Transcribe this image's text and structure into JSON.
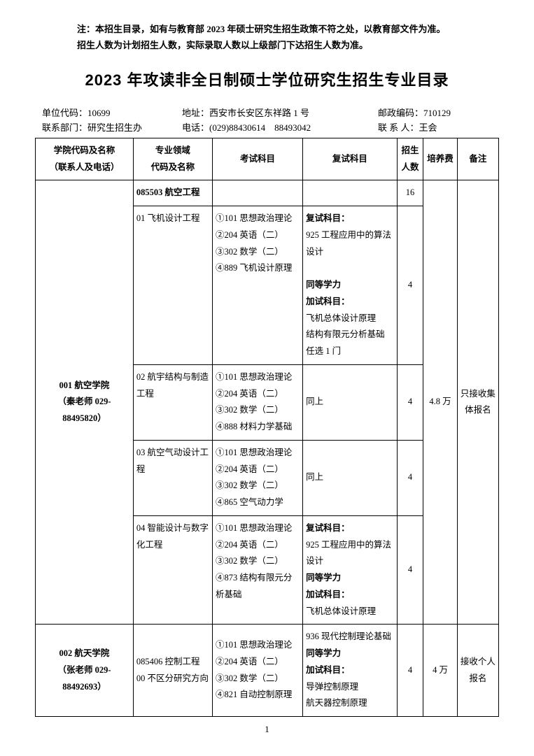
{
  "notice_line1": "注：本招生目录，如有与教育部 2023 年硕士研究生招生政策不符之处，以教育部文件为准。",
  "notice_line2": "招生人数为计划招生人数，实际录取人数以上级部门下达招生人数为准。",
  "title": "2023 年攻读非全日制硕士学位研究生招生专业目录",
  "info": {
    "unit_code_label": "单位代码：",
    "unit_code": "10699",
    "address_label": "地址：",
    "address": "西安市长安区东祥路 1 号",
    "postcode_label": "邮政编码：",
    "postcode": "710129",
    "dept_label": "联系部门：",
    "dept": "研究生招生办",
    "phone_label": "电话：",
    "phone": "(029)88430614　88493042",
    "contact_label": "联 系 人：",
    "contact": "王会"
  },
  "headers": {
    "school": "学院代码及名称\n（联系人及电话）",
    "major": "专业领域\n代码及名称",
    "exam": "考试科目",
    "retest": "复试科目",
    "num": "招生\n人数",
    "fee": "培养费",
    "note": "备注"
  },
  "school1": {
    "name": "001 航空学院",
    "contact": "（秦老师 029-88495820）",
    "fee": "4.8 万",
    "note": "只接收集体报名",
    "major_header": "085503 航空工程",
    "major_header_num": "16",
    "r1": {
      "major": "01 飞机设计工程",
      "exam": "①101 思想政治理论\n②204 英语（二）\n③302 数学（二）\n④889 飞机设计原理",
      "retest_t1": "复试科目：",
      "retest_v1": "925 工程应用中的算法设计",
      "retest_t2": "同等学力",
      "retest_t3": "加试科目：",
      "retest_v2": "飞机总体设计原理\n结构有限元分析基础\n任选 1 门",
      "num": "4"
    },
    "r2": {
      "major": "02 航宇结构与制造工程",
      "exam": "①101 思想政治理论\n②204 英语（二）\n③302 数学（二）\n④888 材料力学基础",
      "retest": "同上",
      "num": "4"
    },
    "r3": {
      "major": "03 航空气动设计工程",
      "exam": "①101 思想政治理论\n②204 英语（二）\n③302 数学（二）\n④865 空气动力学",
      "retest": "同上",
      "num": "4"
    },
    "r4": {
      "major": "04 智能设计与数字化工程",
      "exam": "①101 思想政治理论\n②204 英语（二）\n③302 数学（二）\n④873 结构有限元分析基础",
      "retest_t1": "复试科目：",
      "retest_v1": "925 工程应用中的算法设计",
      "retest_t2": "同等学力",
      "retest_t3": "加试科目：",
      "retest_v2": "飞机总体设计原理",
      "num": "4"
    }
  },
  "school2": {
    "name": "002 航天学院",
    "contact": "（张老师 029-88492693）",
    "major": "085406 控制工程\n00 不区分研究方向",
    "exam": "①101 思想政治理论\n②204 英语（二）\n③302 数学（二）\n④821 自动控制原理",
    "retest_v1": "936 现代控制理论基础",
    "retest_t2": "同等学力",
    "retest_t3": "加试科目：",
    "retest_v2": "导弹控制原理\n航天器控制原理",
    "num": "4",
    "fee": "4 万",
    "note": "接收个人报名"
  },
  "page_num": "1"
}
